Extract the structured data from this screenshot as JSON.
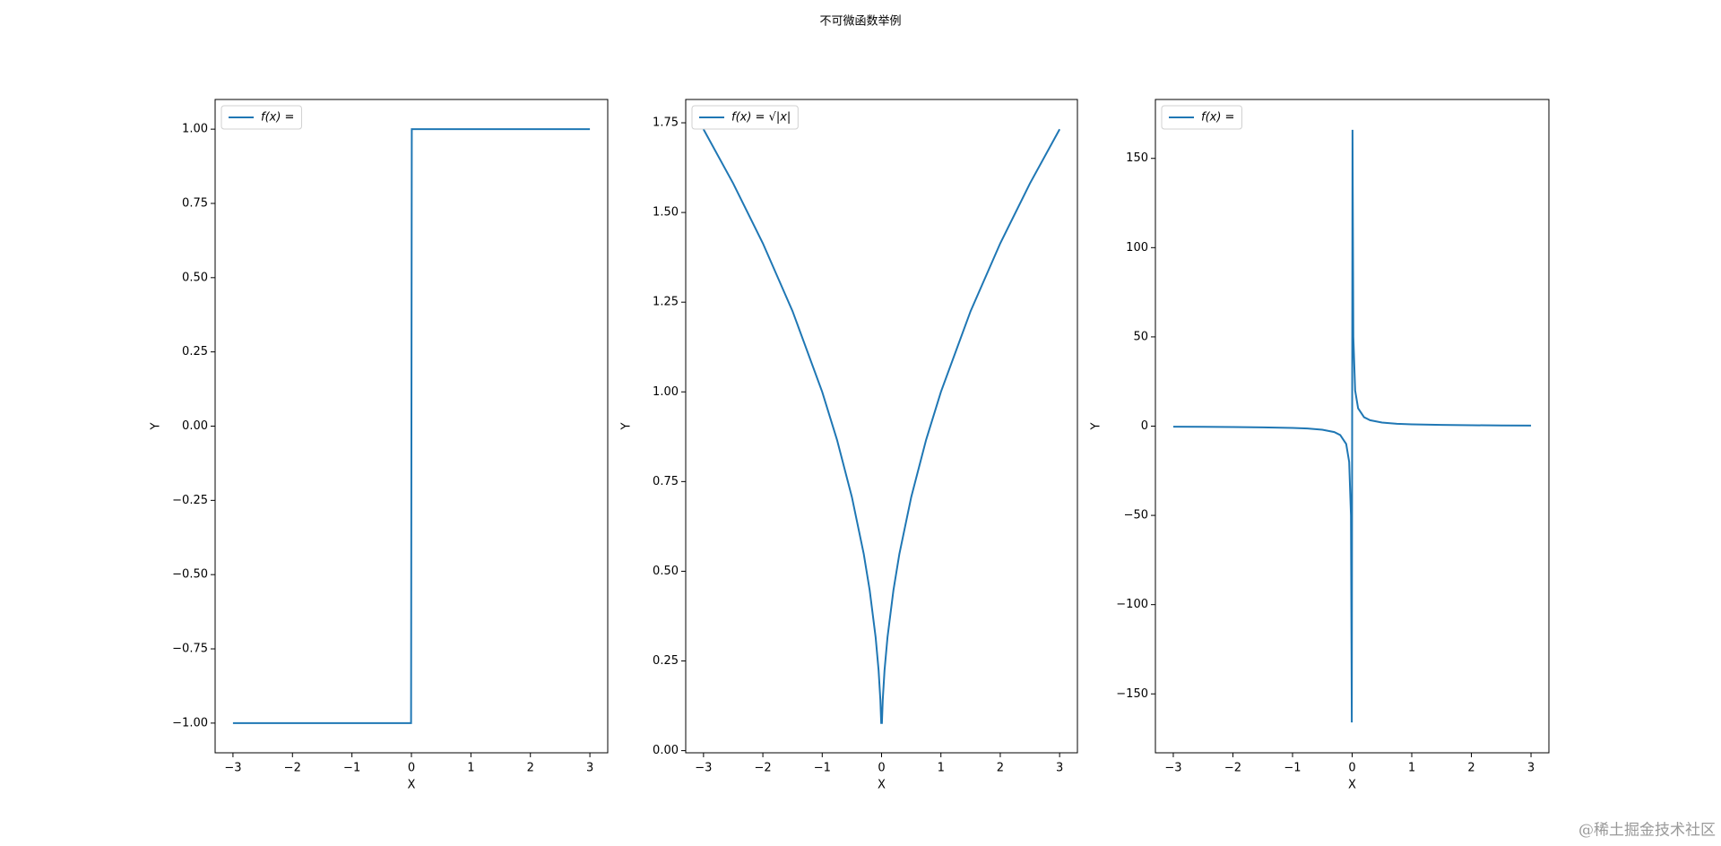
{
  "title": "不可微函数举例",
  "watermark": "@稀土掘金技术社区",
  "chart_data": [
    {
      "type": "line",
      "xlabel": "X",
      "ylabel": "Y",
      "x": [
        -3,
        -2.5,
        -2,
        -1.5,
        -1,
        -0.75,
        -0.5,
        -0.3,
        -0.2,
        -0.1,
        -0.05,
        -0.02,
        -0.006,
        0.006,
        0.02,
        0.05,
        0.1,
        0.2,
        0.3,
        0.5,
        0.75,
        1,
        1.5,
        2,
        2.5,
        3
      ],
      "series": [
        {
          "name": "f(x) =",
          "color": "#1f77b4",
          "values": [
            -1,
            -1,
            -1,
            -1,
            -1,
            -1,
            -1,
            -1,
            -1,
            -1,
            -1,
            -1,
            -1,
            1,
            1,
            1,
            1,
            1,
            1,
            1,
            1,
            1,
            1,
            1,
            1,
            1
          ]
        }
      ],
      "xlim": [
        -3.3,
        3.3
      ],
      "ylim": [
        -1.1,
        1.1
      ],
      "xticks": [
        {
          "value": -3,
          "label": "−3"
        },
        {
          "value": -2,
          "label": "−2"
        },
        {
          "value": -1,
          "label": "−1"
        },
        0,
        1,
        2,
        3
      ],
      "yticks": [
        {
          "value": -1,
          "label": "−1.00"
        },
        {
          "value": -0.75,
          "label": "−0.75"
        },
        {
          "value": -0.5,
          "label": "−0.50"
        },
        {
          "value": -0.25,
          "label": "−0.25"
        },
        {
          "value": 0,
          "label": "0.00"
        },
        {
          "value": 0.25,
          "label": "0.25"
        },
        {
          "value": 0.5,
          "label": "0.50"
        },
        {
          "value": 0.75,
          "label": "0.75"
        },
        {
          "value": 1,
          "label": "1.00"
        }
      ],
      "legend": "upper left"
    },
    {
      "type": "line",
      "xlabel": "X",
      "ylabel": "Y",
      "x": [
        -3,
        -2.5,
        -2,
        -1.5,
        -1,
        -0.75,
        -0.5,
        -0.3,
        -0.2,
        -0.1,
        -0.05,
        -0.02,
        -0.006,
        0.006,
        0.02,
        0.05,
        0.1,
        0.2,
        0.3,
        0.5,
        0.75,
        1,
        1.5,
        2,
        2.5,
        3
      ],
      "series": [
        {
          "name": "f(x) = √|x|",
          "color": "#1f77b4",
          "values": [
            1.732,
            1.581,
            1.414,
            1.225,
            1,
            0.866,
            0.707,
            0.548,
            0.447,
            0.316,
            0.224,
            0.141,
            0.077,
            0.077,
            0.141,
            0.224,
            0.316,
            0.447,
            0.548,
            0.707,
            0.866,
            1,
            1.225,
            1.414,
            1.581,
            1.732
          ]
        }
      ],
      "xlim": [
        -3.3,
        3.3
      ],
      "ylim": [
        -0.006,
        1.815
      ],
      "xticks": [
        {
          "value": -3,
          "label": "−3"
        },
        {
          "value": -2,
          "label": "−2"
        },
        {
          "value": -1,
          "label": "−1"
        },
        0,
        1,
        2,
        3
      ],
      "yticks": [
        {
          "value": 0,
          "label": "0.00"
        },
        {
          "value": 0.25,
          "label": "0.25"
        },
        {
          "value": 0.5,
          "label": "0.50"
        },
        {
          "value": 0.75,
          "label": "0.75"
        },
        {
          "value": 1,
          "label": "1.00"
        },
        {
          "value": 1.25,
          "label": "1.25"
        },
        {
          "value": 1.5,
          "label": "1.50"
        },
        {
          "value": 1.75,
          "label": "1.75"
        }
      ],
      "legend": "upper left"
    },
    {
      "type": "line",
      "xlabel": "X",
      "ylabel": "Y",
      "x": [
        -3,
        -2.5,
        -2,
        -1.5,
        -1,
        -0.75,
        -0.5,
        -0.3,
        -0.2,
        -0.1,
        -0.05,
        -0.02,
        -0.006,
        0.006,
        0.02,
        0.05,
        0.1,
        0.2,
        0.3,
        0.5,
        0.75,
        1,
        1.5,
        2,
        2.5,
        3
      ],
      "series": [
        {
          "name": "f(x) =",
          "color": "#1f77b4",
          "values": [
            -0.333,
            -0.4,
            -0.5,
            -0.667,
            -1,
            -1.333,
            -2,
            -3.333,
            -5,
            -10,
            -20,
            -50,
            -166,
            166,
            50,
            20,
            10,
            5,
            3.333,
            2,
            1.333,
            1,
            0.667,
            0.5,
            0.4,
            0.333
          ]
        }
      ],
      "xlim": [
        -3.3,
        3.3
      ],
      "ylim": [
        -183,
        183
      ],
      "xticks": [
        {
          "value": -3,
          "label": "−3"
        },
        {
          "value": -2,
          "label": "−2"
        },
        {
          "value": -1,
          "label": "−1"
        },
        0,
        1,
        2,
        3
      ],
      "yticks": [
        {
          "value": -150,
          "label": "−150"
        },
        {
          "value": -100,
          "label": "−100"
        },
        {
          "value": -50,
          "label": "−50"
        },
        0,
        50,
        100,
        150
      ],
      "legend": "upper left"
    }
  ]
}
